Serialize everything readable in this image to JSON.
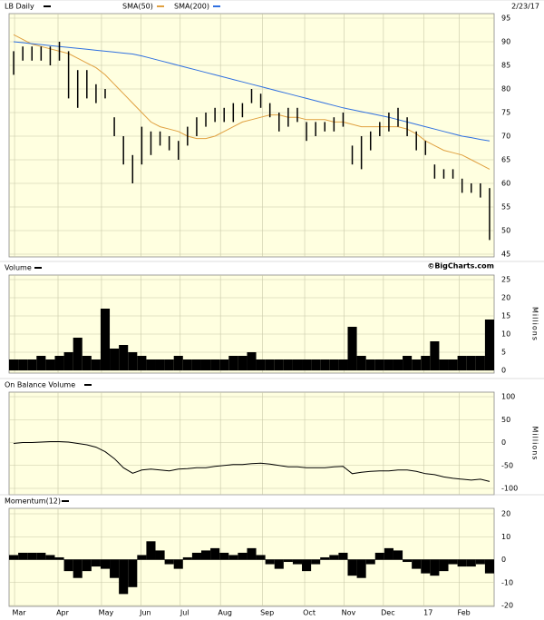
{
  "chart_data": [
    {
      "type": "ohlc",
      "title": "LB Daily",
      "date": "2/23/17",
      "source": "©BigCharts.com",
      "color": "#000000",
      "x": [
        0,
        1,
        2,
        3,
        4,
        5,
        6,
        7,
        8,
        9,
        10,
        11,
        12,
        13,
        14,
        15,
        16,
        17,
        18,
        19,
        20,
        21,
        22,
        23,
        24,
        25,
        26,
        27,
        28,
        29,
        30,
        31,
        32,
        33,
        34,
        35,
        36,
        37,
        38,
        39,
        40,
        41,
        42,
        43,
        44,
        45,
        46,
        47,
        48,
        49,
        50,
        51,
        52
      ],
      "high": [
        88,
        89,
        89,
        89,
        89,
        90,
        88,
        84,
        84,
        81,
        80,
        74,
        70,
        66,
        72,
        71,
        71,
        70,
        69,
        72,
        74,
        75,
        76,
        76,
        77,
        77,
        80,
        79,
        77,
        75,
        76,
        76,
        73,
        73,
        73,
        74,
        75,
        68,
        70,
        71,
        73,
        75,
        76,
        74,
        71,
        69,
        64,
        63,
        63,
        61,
        60,
        60,
        59
      ],
      "low": [
        83,
        86,
        86,
        86,
        85,
        86,
        78,
        76,
        78,
        77,
        78,
        70,
        64,
        60,
        64,
        66,
        68,
        67,
        65,
        68,
        70,
        72,
        73,
        73,
        73,
        74,
        77,
        76,
        74,
        71,
        72,
        73,
        69,
        70,
        71,
        71,
        72,
        64,
        63,
        67,
        70,
        71,
        72,
        70,
        67,
        66,
        61,
        61,
        61,
        58,
        58,
        57,
        48
      ],
      "series": [
        {
          "name": "SMA(50)",
          "color": "#e0a040",
          "values": [
            91.5,
            90.5,
            89.5,
            89,
            88.5,
            88,
            87.5,
            86.5,
            85.5,
            84.5,
            83,
            81,
            79,
            77,
            75,
            73,
            72,
            71.5,
            71,
            70,
            69.5,
            69.5,
            70,
            71,
            72,
            73,
            73.5,
            74,
            74.5,
            74.5,
            74,
            74,
            73.5,
            73.5,
            73.5,
            73,
            73,
            72.5,
            72,
            72,
            72,
            72,
            72,
            71.5,
            70.5,
            69,
            68,
            67,
            66.5,
            66,
            65,
            64,
            63
          ]
        },
        {
          "name": "SMA(200)",
          "color": "#3070e0",
          "values": [
            90,
            89.8,
            89.6,
            89.4,
            89.2,
            89,
            88.8,
            88.6,
            88.4,
            88.2,
            88,
            87.8,
            87.6,
            87.4,
            87,
            86.5,
            86,
            85.5,
            85,
            84.5,
            84,
            83.5,
            83,
            82.5,
            82,
            81.5,
            81,
            80.5,
            80,
            79.5,
            79,
            78.5,
            78,
            77.5,
            77,
            76.5,
            76,
            75.6,
            75.2,
            74.8,
            74.4,
            74,
            73.5,
            73,
            72.5,
            72,
            71.5,
            71,
            70.5,
            70,
            69.7,
            69.3,
            69
          ]
        }
      ],
      "xlim": [
        -0.5,
        52.5
      ],
      "ylim": [
        45,
        95
      ],
      "yticks": [
        45,
        50,
        55,
        60,
        65,
        70,
        75,
        80,
        85,
        90,
        95
      ],
      "grid": true
    },
    {
      "type": "volume",
      "title": "Volume",
      "y_label": "Millions",
      "color": "#000000",
      "x": [
        0,
        1,
        2,
        3,
        4,
        5,
        6,
        7,
        8,
        9,
        10,
        11,
        12,
        13,
        14,
        15,
        16,
        17,
        18,
        19,
        20,
        21,
        22,
        23,
        24,
        25,
        26,
        27,
        28,
        29,
        30,
        31,
        32,
        33,
        34,
        35,
        36,
        37,
        38,
        39,
        40,
        41,
        42,
        43,
        44,
        45,
        46,
        47,
        48,
        49,
        50,
        51,
        52
      ],
      "values": [
        3,
        3,
        3,
        4,
        3,
        4,
        5,
        9,
        4,
        3,
        17,
        6,
        7,
        5,
        4,
        3,
        3,
        3,
        4,
        3,
        3,
        3,
        3,
        3,
        4,
        4,
        5,
        3,
        3,
        3,
        3,
        3,
        3,
        3,
        3,
        3,
        3,
        12,
        4,
        3,
        3,
        3,
        3,
        4,
        3,
        4,
        8,
        3,
        3,
        4,
        4,
        4,
        14
      ],
      "xlim": [
        -0.5,
        52.5
      ],
      "ylim": [
        0,
        25
      ],
      "yticks": [
        0,
        5,
        10,
        15,
        20,
        25
      ],
      "grid": true
    },
    {
      "type": "line",
      "title": "On Balance Volume",
      "y_label": "Millions",
      "color": "#000000",
      "x": [
        0,
        1,
        2,
        3,
        4,
        5,
        6,
        7,
        8,
        9,
        10,
        11,
        12,
        13,
        14,
        15,
        16,
        17,
        18,
        19,
        20,
        21,
        22,
        23,
        24,
        25,
        26,
        27,
        28,
        29,
        30,
        31,
        32,
        33,
        34,
        35,
        36,
        37,
        38,
        39,
        40,
        41,
        42,
        43,
        44,
        45,
        46,
        47,
        48,
        49,
        50,
        51,
        52
      ],
      "values": [
        -2,
        0,
        0,
        1,
        2,
        2,
        1,
        -2,
        -5,
        -10,
        -20,
        -35,
        -55,
        -67,
        -60,
        -58,
        -60,
        -62,
        -58,
        -57,
        -55,
        -55,
        -52,
        -50,
        -48,
        -48,
        -46,
        -45,
        -47,
        -50,
        -53,
        -53,
        -55,
        -55,
        -55,
        -53,
        -52,
        -68,
        -65,
        -63,
        -62,
        -62,
        -60,
        -60,
        -63,
        -68,
        -70,
        -75,
        -78,
        -80,
        -82,
        -80,
        -85
      ],
      "xlim": [
        -0.5,
        52.5
      ],
      "ylim": [
        -100,
        100
      ],
      "yticks": [
        -100,
        -50,
        0,
        50,
        100
      ],
      "grid": true
    },
    {
      "type": "momentum",
      "title": "Momentum(12)",
      "color": "#000000",
      "x": [
        0,
        1,
        2,
        3,
        4,
        5,
        6,
        7,
        8,
        9,
        10,
        11,
        12,
        13,
        14,
        15,
        16,
        17,
        18,
        19,
        20,
        21,
        22,
        23,
        24,
        25,
        26,
        27,
        28,
        29,
        30,
        31,
        32,
        33,
        34,
        35,
        36,
        37,
        38,
        39,
        40,
        41,
        42,
        43,
        44,
        45,
        46,
        47,
        48,
        49,
        50,
        51,
        52
      ],
      "values": [
        2,
        3,
        3,
        3,
        2,
        1,
        -5,
        -8,
        -5,
        -3,
        -4,
        -8,
        -15,
        -12,
        2,
        8,
        4,
        -2,
        -4,
        1,
        3,
        4,
        5,
        3,
        2,
        3,
        5,
        2,
        -2,
        -4,
        -1,
        -2,
        -5,
        -2,
        1,
        2,
        3,
        -7,
        -8,
        -2,
        3,
        5,
        4,
        -1,
        -4,
        -6,
        -7,
        -5,
        -2,
        -3,
        -3,
        -2,
        -6
      ],
      "xlim": [
        -0.5,
        52.5
      ],
      "ylim": [
        -20,
        20
      ],
      "yticks": [
        -20,
        -10,
        0,
        10,
        20
      ],
      "xticks": [
        {
          "value": 0.1,
          "label": "Mar"
        },
        {
          "value": 4.85,
          "label": "Apr"
        },
        {
          "value": 9.6,
          "label": "May"
        },
        {
          "value": 13.9,
          "label": "Jun"
        },
        {
          "value": 18.2,
          "label": "Jul"
        },
        {
          "value": 22.6,
          "label": "Aug"
        },
        {
          "value": 27.2,
          "label": "Sep"
        },
        {
          "value": 31.8,
          "label": "Oct"
        },
        {
          "value": 36.1,
          "label": "Nov"
        },
        {
          "value": 40.4,
          "label": "Dec"
        },
        {
          "value": 44.8,
          "label": "17"
        },
        {
          "value": 48.7,
          "label": "Feb"
        }
      ],
      "grid": true
    }
  ]
}
